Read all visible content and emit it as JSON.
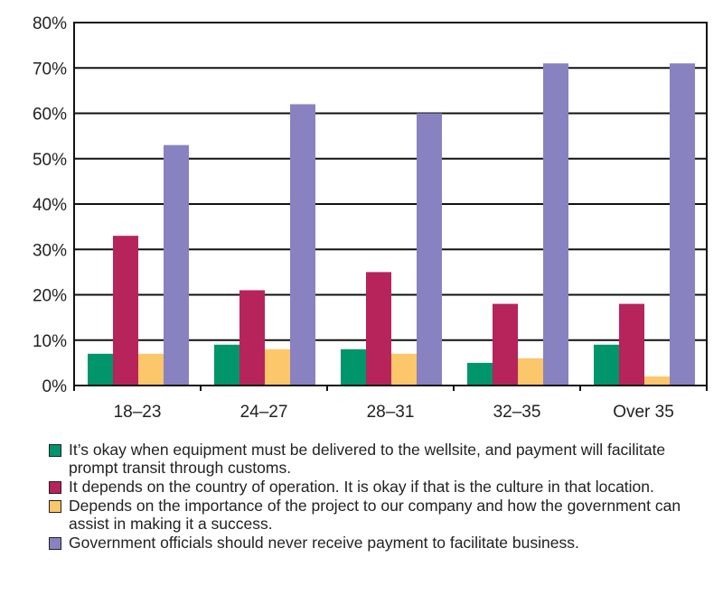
{
  "chart_data": {
    "type": "bar",
    "title": "",
    "xlabel": "",
    "ylabel": "",
    "ylim": [
      0,
      80
    ],
    "yticks": [
      "0%",
      "10%",
      "20%",
      "30%",
      "40%",
      "50%",
      "60%",
      "70%",
      "80%"
    ],
    "grid": true,
    "legend_placement": "bottom",
    "categories": [
      "18–23",
      "24–27",
      "28–31",
      "32–35",
      "Over 35"
    ],
    "series": [
      {
        "name": "It’s okay when equipment must be delivered to the wellsite, and payment will facilitate prompt transit through customs.",
        "color": "#00956a",
        "values": [
          7,
          9,
          8,
          5,
          9
        ]
      },
      {
        "name": "It depends on the country of operation. It is okay if that is the culture in that location.",
        "color": "#b7235b",
        "values": [
          33,
          21,
          25,
          18,
          18
        ]
      },
      {
        "name": "Depends on the importance of the project to our company and how the government can assist in making it a success.",
        "color": "#fcc66a",
        "values": [
          7,
          8,
          7,
          6,
          2
        ]
      },
      {
        "name": "Government officials should never receive payment to facilitate business.",
        "color": "#8882c0",
        "values": [
          53,
          62,
          60,
          71,
          71
        ]
      }
    ]
  }
}
